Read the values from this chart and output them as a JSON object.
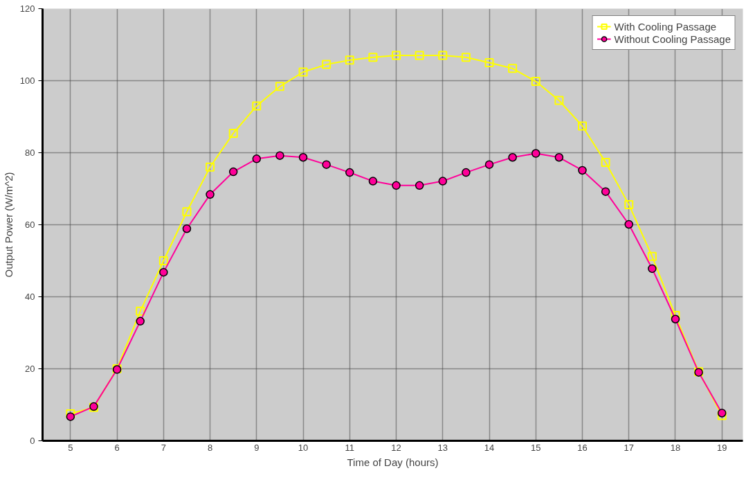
{
  "chart_data": {
    "type": "line",
    "xlabel": "Time of Day (hours)",
    "ylabel": "Output Power (W/m^2)",
    "x": [
      5,
      5.5,
      6,
      6.5,
      7,
      7.5,
      8,
      8.5,
      9,
      9.5,
      10,
      10.5,
      11,
      11.5,
      12,
      12.5,
      13,
      13.5,
      14,
      14.5,
      15,
      15.5,
      16,
      16.5,
      17,
      17.5,
      18,
      18.5,
      19
    ],
    "series": [
      {
        "name": "With Cooling Passage",
        "color": "#ffff00",
        "marker": "square",
        "values": [
          7.5,
          9.3,
          20,
          36,
          50,
          63.6,
          76,
          85.4,
          93,
          98.4,
          102.4,
          104.5,
          105.7,
          106.5,
          107,
          107,
          107,
          106.5,
          105,
          103.4,
          99.8,
          94.5,
          87.4,
          77.3,
          65.6,
          51.2,
          34.8,
          19.2,
          7
        ]
      },
      {
        "name": "Without Cooling Passage",
        "color": "#ff0099",
        "marker": "circle",
        "values": [
          6.7,
          9.5,
          19.8,
          33.2,
          46.8,
          58.9,
          68.4,
          74.7,
          78.3,
          79.2,
          78.7,
          76.7,
          74.5,
          72.1,
          70.9,
          70.9,
          72.1,
          74.5,
          76.7,
          78.7,
          79.8,
          78.7,
          75.1,
          69.2,
          60.1,
          47.8,
          33.8,
          19,
          7.7
        ]
      }
    ],
    "xlim": [
      4.4,
      19.45
    ],
    "xticks": [
      5,
      6,
      7,
      8,
      9,
      10,
      11,
      12,
      13,
      14,
      15,
      16,
      17,
      18,
      19
    ],
    "ylim": [
      0,
      120
    ],
    "yticks": [
      0,
      20,
      40,
      60,
      80,
      100,
      120
    ],
    "grid": true,
    "legend": "top right",
    "line_style": "solid"
  }
}
